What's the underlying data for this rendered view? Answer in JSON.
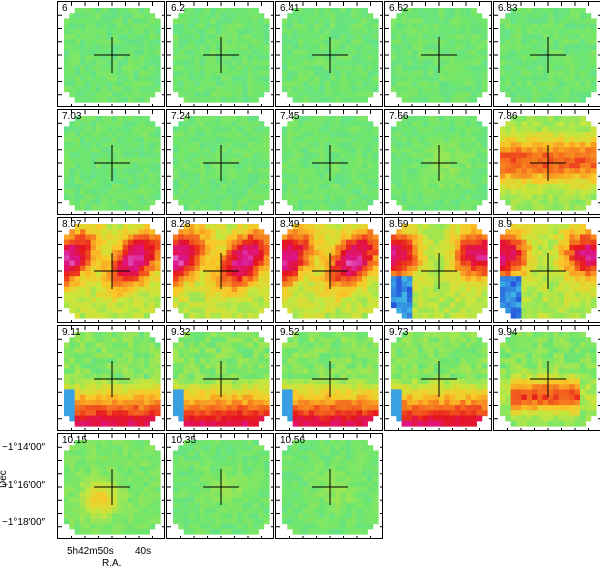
{
  "figure": {
    "panels": [
      {
        "label": "6",
        "pattern": "flat"
      },
      {
        "label": "6.2",
        "pattern": "flat"
      },
      {
        "label": "6.41",
        "pattern": "flat"
      },
      {
        "label": "6.62",
        "pattern": "flat"
      },
      {
        "label": "6.83",
        "pattern": "flat"
      },
      {
        "label": "7.03",
        "pattern": "flat"
      },
      {
        "label": "7.24",
        "pattern": "flat"
      },
      {
        "label": "7.45",
        "pattern": "flat"
      },
      {
        "label": "7.66",
        "pattern": "weak"
      },
      {
        "label": "7.86",
        "pattern": "moderate"
      },
      {
        "label": "8.07",
        "pattern": "strong"
      },
      {
        "label": "8.28",
        "pattern": "strong"
      },
      {
        "label": "8.49",
        "pattern": "strong"
      },
      {
        "label": "8.69",
        "pattern": "strong-blue"
      },
      {
        "label": "8.9",
        "pattern": "strong-blue"
      },
      {
        "label": "9.11",
        "pattern": "lower-strong"
      },
      {
        "label": "9.32",
        "pattern": "lower-strong"
      },
      {
        "label": "9.52",
        "pattern": "lower-strong"
      },
      {
        "label": "9.73",
        "pattern": "lower-strong"
      },
      {
        "label": "9.94",
        "pattern": "lower-moderate"
      },
      {
        "label": "10.15",
        "pattern": "weak-left"
      },
      {
        "label": "10.35",
        "pattern": "weak"
      },
      {
        "label": "10.56",
        "pattern": "weak"
      }
    ],
    "dec_ticks": [
      "−1°14′00″",
      "−1°16′00″",
      "−1°18′00″"
    ],
    "dec_title": "Dec",
    "ra_ticks": [
      "5h42m50s",
      "40s"
    ],
    "ra_title": "R.A."
  }
}
